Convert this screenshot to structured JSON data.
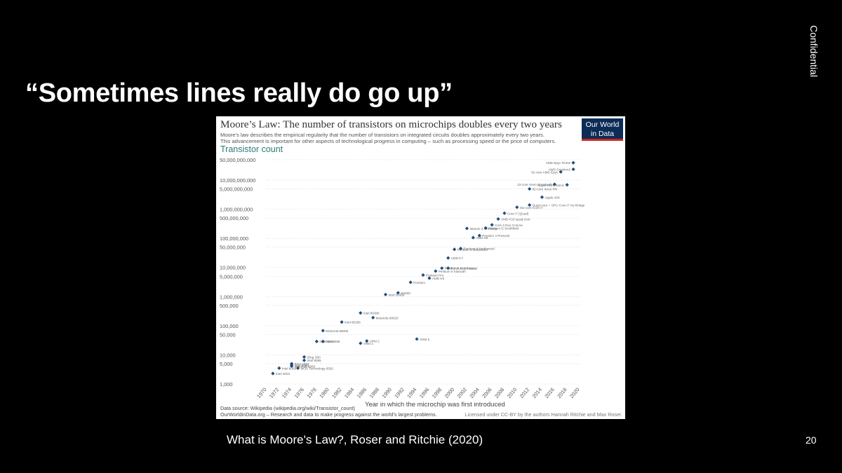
{
  "slide": {
    "title": "“Sometimes lines really do go up”",
    "confidential": "Confidential",
    "caption": "What is Moore's Law?, Roser and Ritchie (2020)",
    "page_number": "20"
  },
  "colors": {
    "background": "#000000",
    "card": "#ffffff",
    "points": "#1f4e79",
    "owid_navy": "#0c2c57",
    "owid_red": "#ce261e",
    "ylabel": "#2c7a78"
  },
  "chart_data": {
    "type": "scatter",
    "title": "Moore’s Law: The number of transistors on microchips doubles every two years",
    "subtitle_1": "Moore's law describes the empirical regularity that the number of transistors on integrated circuits doubles approximately every two years.",
    "subtitle_2": "This advancement is important for other aspects of technological progress in computing – such as processing speed or the price of computers.",
    "ylabel": "Transistor count",
    "xlabel": "Year in which the microchip was first introduced",
    "logo_line1": "Our World",
    "logo_line2": "in Data",
    "source": "Data source: Wikipedia (wikipedia.org/wiki/Transistor_count)",
    "footer_left": "OurWorldinData.org – Research and data to make progress against the world’s largest problems.",
    "footer_right": "Licensed under CC-BY by the authors Hannah Ritchie and Max Roser.",
    "y_scale": "log",
    "ylim": [
      1000,
      50000000000
    ],
    "xlim": [
      1970,
      2020
    ],
    "grid": true,
    "y_ticks": [
      {
        "value": 50000000000,
        "label": "50,000,000,000"
      },
      {
        "value": 10000000000,
        "label": "10,000,000,000"
      },
      {
        "value": 5000000000,
        "label": "5,000,000,000"
      },
      {
        "value": 1000000000,
        "label": "1,000,000,000"
      },
      {
        "value": 500000000,
        "label": "500,000,000"
      },
      {
        "value": 100000000,
        "label": "100,000,000"
      },
      {
        "value": 50000000,
        "label": "50,000,000"
      },
      {
        "value": 10000000,
        "label": "10,000,000"
      },
      {
        "value": 5000000,
        "label": "5,000,000"
      },
      {
        "value": 1000000,
        "label": "1,000,000"
      },
      {
        "value": 500000,
        "label": "500,000"
      },
      {
        "value": 100000,
        "label": "100,000"
      },
      {
        "value": 50000,
        "label": "50,000"
      },
      {
        "value": 10000,
        "label": "10,000"
      },
      {
        "value": 5000,
        "label": "5,000"
      },
      {
        "value": 1000,
        "label": "1,000"
      }
    ],
    "x_ticks": [
      "1970",
      "1972",
      "1974",
      "1976",
      "1978",
      "1980",
      "1982",
      "1984",
      "1986",
      "1988",
      "1990",
      "1992",
      "1994",
      "1996",
      "1998",
      "2000",
      "2002",
      "2004",
      "2006",
      "2008",
      "2010",
      "2012",
      "2014",
      "2016",
      "2018",
      "2020"
    ],
    "points": [
      {
        "x": 1971,
        "y": 2300,
        "label": "Intel 4004"
      },
      {
        "x": 1972,
        "y": 3500,
        "label": "Intel 8008"
      },
      {
        "x": 1974,
        "y": 4500,
        "label": "Intel 8080"
      },
      {
        "x": 1974,
        "y": 4100,
        "label": "Motorola 6800"
      },
      {
        "x": 1974,
        "y": 5000,
        "label": "RCA 1802"
      },
      {
        "x": 1975,
        "y": 3510,
        "label": "MOS Technology 6502"
      },
      {
        "x": 1976,
        "y": 6500,
        "label": "Intel 8085"
      },
      {
        "x": 1976,
        "y": 8500,
        "label": "Zilog Z80"
      },
      {
        "x": 1978,
        "y": 29000,
        "label": "Intel 8086"
      },
      {
        "x": 1979,
        "y": 29000,
        "label": "Intel 8088"
      },
      {
        "x": 1979,
        "y": 68000,
        "label": "Motorola 68000"
      },
      {
        "x": 1982,
        "y": 134000,
        "label": "Intel 80286"
      },
      {
        "x": 1985,
        "y": 275000,
        "label": "Intel 80386"
      },
      {
        "x": 1985,
        "y": 25000,
        "label": "ARM 1"
      },
      {
        "x": 1986,
        "y": 30000,
        "label": "ARM 2"
      },
      {
        "x": 1987,
        "y": 190000,
        "label": "Motorola 68020"
      },
      {
        "x": 1989,
        "y": 1180000,
        "label": "Intel 80486"
      },
      {
        "x": 1991,
        "y": 1350000,
        "label": "R4000"
      },
      {
        "x": 1993,
        "y": 3100000,
        "label": "Pentium"
      },
      {
        "x": 1994,
        "y": 35000,
        "label": "ARM 6"
      },
      {
        "x": 1995,
        "y": 5500000,
        "label": "Pentium Pro"
      },
      {
        "x": 1996,
        "y": 4300000,
        "label": "AMD K5"
      },
      {
        "x": 1997,
        "y": 7500000,
        "label": "Pentium II Klamath"
      },
      {
        "x": 1998,
        "y": 9500000,
        "label": "Pentium II Deschutes"
      },
      {
        "x": 1999,
        "y": 21300000,
        "label": "AMD K7"
      },
      {
        "x": 1999,
        "y": 9500000,
        "label": "Pentium III Katmai"
      },
      {
        "x": 2000,
        "y": 42000000,
        "label": "Pentium 4 Willamette"
      },
      {
        "x": 2001,
        "y": 45000000,
        "label": "Pentium 4 Northwood"
      },
      {
        "x": 2002,
        "y": 220000000,
        "label": "Itanium 2 McKinley"
      },
      {
        "x": 2003,
        "y": 105900000,
        "label": "AMD K8"
      },
      {
        "x": 2004,
        "y": 125000000,
        "label": "Pentium 4 Prescott"
      },
      {
        "x": 2005,
        "y": 228000000,
        "label": "Pentium D Smithfield"
      },
      {
        "x": 2006,
        "y": 291000000,
        "label": "Core 2 Duo Conroe"
      },
      {
        "x": 2007,
        "y": 463000000,
        "label": "AMD K10 quad-core"
      },
      {
        "x": 2008,
        "y": 731000000,
        "label": "Core i7 (Quad)"
      },
      {
        "x": 2010,
        "y": 1170000000,
        "label": "Six-core Core i7"
      },
      {
        "x": 2012,
        "y": 1400000000,
        "label": "Quad-core + GPU Core i7 Ivy Bridge"
      },
      {
        "x": 2012,
        "y": 5000000000,
        "label": "62-core Xeon Phi"
      },
      {
        "x": 2014,
        "y": 2600000000,
        "label": "Apple A8X"
      },
      {
        "x": 2016,
        "y": 7200000000,
        "label": "22-core Xeon Broadwell"
      },
      {
        "x": 2017,
        "y": 19200000000,
        "label": "32-core AMD Epyc"
      },
      {
        "x": 2018,
        "y": 6900000000,
        "label": "Apple A12X Bionic"
      },
      {
        "x": 2019,
        "y": 39540000000,
        "label": "AMD Epyc Rome"
      },
      {
        "x": 2019,
        "y": 23600000000,
        "label": "AWS Graviton2"
      }
    ]
  }
}
